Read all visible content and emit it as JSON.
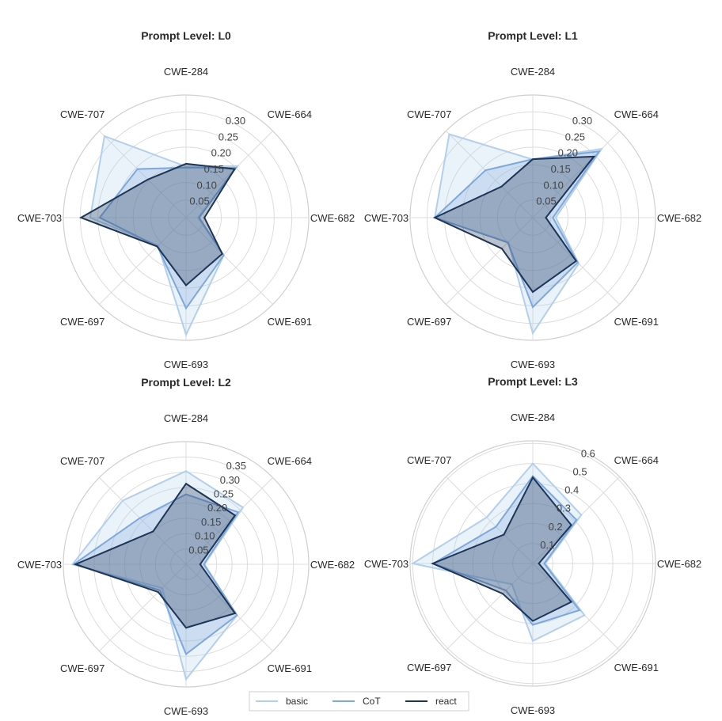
{
  "chart_data": {
    "type": "radar",
    "legend": {
      "placement": "bottom-center",
      "entries": [
        "basic",
        "CoT",
        "react"
      ]
    },
    "series_colors": {
      "basic": "#b3cfec",
      "CoT": "#7ea8dc",
      "react": "#1d3557"
    },
    "axes": [
      "CWE-284",
      "CWE-664",
      "CWE-682",
      "CWE-691",
      "CWE-693",
      "CWE-697",
      "CWE-703",
      "CWE-707"
    ],
    "grid": true,
    "charts": [
      {
        "title": "Prompt Level: L0",
        "rrange": [
          0,
          0.348
        ],
        "ticks": [
          "0.05",
          "0.10",
          "0.15",
          "0.20",
          "0.25",
          "0.30"
        ],
        "series": [
          {
            "name": "basic",
            "values": [
              0.145,
              0.207,
              0.034,
              0.151,
              0.332,
              0.112,
              0.272,
              0.327
            ]
          },
          {
            "name": "CoT",
            "values": [
              0.142,
              0.2,
              0.037,
              0.151,
              0.257,
              0.115,
              0.245,
              0.195
            ]
          },
          {
            "name": "react",
            "values": [
              0.153,
              0.195,
              0.052,
              0.145,
              0.192,
              0.116,
              0.298,
              0.153
            ]
          }
        ]
      },
      {
        "title": "Prompt Level: L1",
        "rrange": [
          0,
          0.348
        ],
        "ticks": [
          "0.05",
          "0.10",
          "0.15",
          "0.20",
          "0.25",
          "0.30"
        ],
        "series": [
          {
            "name": "basic",
            "values": [
              0.165,
              0.276,
              0.065,
              0.184,
              0.328,
              0.098,
              0.278,
              0.335
            ]
          },
          {
            "name": "CoT",
            "values": [
              0.166,
              0.266,
              0.057,
              0.18,
              0.254,
              0.1,
              0.278,
              0.19
            ]
          },
          {
            "name": "react",
            "values": [
              0.166,
              0.245,
              0.037,
              0.174,
              0.211,
              0.124,
              0.278,
              0.125
            ]
          }
        ]
      },
      {
        "title": "Prompt Level: L2",
        "rrange": [
          0,
          0.4
        ],
        "ticks": [
          "0.05",
          "0.10",
          "0.15",
          "0.20",
          "0.25",
          "0.30",
          "0.35"
        ],
        "series": [
          {
            "name": "basic",
            "values": [
              0.304,
              0.262,
              0.06,
              0.235,
              0.375,
              0.11,
              0.37,
              0.293
            ]
          },
          {
            "name": "CoT",
            "values": [
              0.228,
              0.24,
              0.058,
              0.235,
              0.293,
              0.12,
              0.366,
              0.213
            ]
          },
          {
            "name": "react",
            "values": [
              0.263,
              0.226,
              0.046,
              0.226,
              0.207,
              0.128,
              0.36,
              0.152
            ]
          }
        ]
      },
      {
        "title": "Prompt Level: L3",
        "rrange": [
          0,
          0.613
        ],
        "ticks": [
          "0.1",
          "0.2",
          "0.3",
          "0.4",
          "0.5",
          "0.6"
        ],
        "series": [
          {
            "name": "basic",
            "values": [
              0.5,
              0.343,
              0.063,
              0.366,
              0.387,
              0.147,
              0.6,
              0.326
            ]
          },
          {
            "name": "CoT",
            "values": [
              0.437,
              0.309,
              0.057,
              0.33,
              0.307,
              0.19,
              0.497,
              0.26
            ]
          },
          {
            "name": "react",
            "values": [
              0.43,
              0.272,
              0.03,
              0.272,
              0.287,
              0.213,
              0.5,
              0.204
            ]
          }
        ]
      }
    ]
  }
}
